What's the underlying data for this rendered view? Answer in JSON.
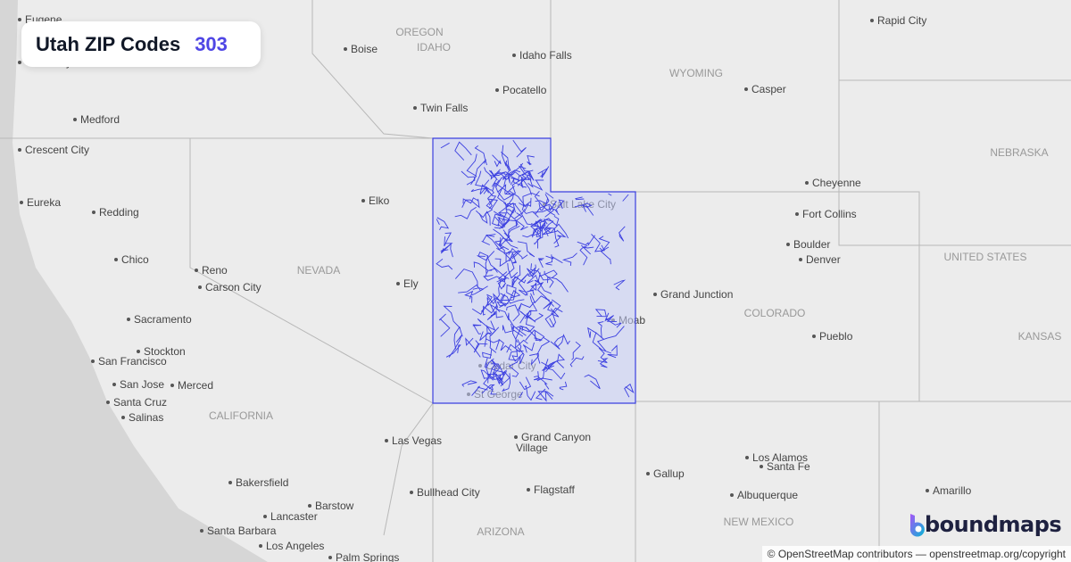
{
  "title": {
    "label": "Utah ZIP Codes",
    "count": "303"
  },
  "brand": {
    "name": "boundmaps"
  },
  "attribution": "© OpenStreetMap contributors — openstreetmap.org/copyright",
  "colors": {
    "accent": "#4f46e5",
    "zip_fill": "#c7cdf7",
    "zip_stroke": "#3b3fe0",
    "land": "#ececec",
    "ocean": "#d4d4d4"
  },
  "map": {
    "cities": [
      "Eugene",
      "Coos Bay",
      "Boise",
      "Idaho Falls",
      "Rapid City",
      "Casper",
      "Pocatello",
      "Twin Falls",
      "Medford",
      "Crescent City",
      "Cheyenne",
      "Elko",
      "Eureka",
      "Redding",
      "Fort Collins",
      "Boulder",
      "Denver",
      "Chico",
      "Reno",
      "Carson City",
      "Ely",
      "Grand Junction",
      "Moab",
      "Sacramento",
      "Pueblo",
      "Stockton",
      "San Francisco",
      "San Jose",
      "Merced",
      "Santa Cruz",
      "Salinas",
      "Las Vegas",
      "Grand Canyon",
      "Village",
      "Los Alamos",
      "Santa Fe",
      "Gallup",
      "Bakersfield",
      "Flagstaff",
      "Bullhead City",
      "Albuquerque",
      "Amarillo",
      "Barstow",
      "Lancaster",
      "Santa Barbara",
      "Los Angeles",
      "Palm Springs",
      "Salt Lake City",
      "Cedar City",
      "St George"
    ],
    "regions": [
      "IDAHO",
      "WYOMING",
      "NEBRASKA",
      "NEVADA",
      "UNITED STATES",
      "COLORADO",
      "KANSAS",
      "CALIFORNIA",
      "NEW MEXICO",
      "ARIZONA",
      "OREGON"
    ]
  }
}
